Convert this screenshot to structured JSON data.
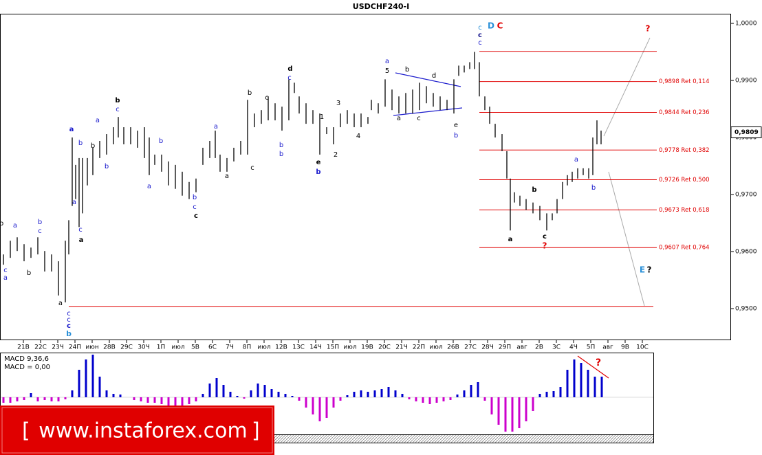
{
  "chart_data": {
    "type": "ohlc",
    "title": "USDCHF240-I",
    "xlim": [
      -1.36,
      36.64
    ],
    "ylim": [
      0.94446,
      1.00169
    ],
    "xticks": [
      {
        "value": 0,
        "label": "21В"
      },
      {
        "value": 1,
        "label": "22С"
      },
      {
        "value": 2,
        "label": "23Ч"
      },
      {
        "value": 3,
        "label": "24П"
      },
      {
        "value": 4,
        "label": "июн"
      },
      {
        "value": 5,
        "label": "28В"
      },
      {
        "value": 6,
        "label": "29С"
      },
      {
        "value": 7,
        "label": "30Ч"
      },
      {
        "value": 8,
        "label": "1П"
      },
      {
        "value": 9,
        "label": "июл"
      },
      {
        "value": 10,
        "label": "5В"
      },
      {
        "value": 11,
        "label": "6С"
      },
      {
        "value": 12,
        "label": "7Ч"
      },
      {
        "value": 13,
        "label": "8П"
      },
      {
        "value": 14,
        "label": "июл"
      },
      {
        "value": 15,
        "label": "12В"
      },
      {
        "value": 16,
        "label": "13С"
      },
      {
        "value": 17,
        "label": "14Ч"
      },
      {
        "value": 18,
        "label": "15П"
      },
      {
        "value": 19,
        "label": "июл"
      },
      {
        "value": 20,
        "label": "19В"
      },
      {
        "value": 21,
        "label": "20С"
      },
      {
        "value": 22,
        "label": "21Ч"
      },
      {
        "value": 23,
        "label": "22П"
      },
      {
        "value": 24,
        "label": "июл"
      },
      {
        "value": 25,
        "label": "26В"
      },
      {
        "value": 26,
        "label": "27С"
      },
      {
        "value": 27,
        "label": "28Ч"
      },
      {
        "value": 28,
        "label": "29П"
      },
      {
        "value": 29,
        "label": "авг"
      },
      {
        "value": 30,
        "label": "2В"
      },
      {
        "value": 31,
        "label": "3С"
      },
      {
        "value": 32,
        "label": "4Ч"
      },
      {
        "value": 33,
        "label": "5П"
      },
      {
        "value": 34,
        "label": "авг"
      },
      {
        "value": 35,
        "label": "9В"
      },
      {
        "value": 36,
        "label": "10С"
      }
    ],
    "yticks": [
      {
        "value": 0.95,
        "label": "0,9500"
      },
      {
        "value": 0.96,
        "label": "0,9600"
      },
      {
        "value": 0.97,
        "label": "0,9700"
      },
      {
        "value": 0.98,
        "label": "0,9800"
      },
      {
        "value": 0.99,
        "label": "0,9900"
      },
      {
        "value": 1.0,
        "label": "1,0000"
      }
    ],
    "color": "#000000",
    "bars": {
      "x": [
        -1.16,
        -0.76,
        -0.36,
        0.04,
        0.44,
        0.84,
        1.24,
        1.64,
        2.04,
        2.44,
        2.64,
        2.84,
        3.04,
        3.24,
        3.44,
        3.72,
        4.04,
        4.44,
        4.84,
        5.24,
        5.52,
        5.84,
        6.24,
        6.64,
        7.04,
        7.32,
        7.64,
        8.04,
        8.44,
        8.84,
        9.24,
        9.64,
        10.04,
        10.44,
        10.84,
        11.16,
        11.44,
        11.84,
        12.24,
        12.64,
        13.04,
        13.44,
        13.84,
        14.24,
        14.64,
        15.04,
        15.44,
        15.76,
        16.04,
        16.44,
        16.84,
        17.24,
        17.64,
        18.04,
        18.44,
        18.84,
        19.24,
        19.64,
        20.04,
        20.24,
        20.64,
        21.04,
        21.44,
        21.84,
        22.24,
        22.64,
        23.04,
        23.44,
        23.84,
        24.24,
        24.64,
        25.04,
        25.32,
        25.64,
        25.96,
        26.24,
        26.52,
        26.84,
        27.12,
        27.44,
        27.84,
        28.12,
        28.32,
        28.56,
        28.88,
        29.24,
        29.64,
        30.04,
        30.44,
        30.76,
        31.04,
        31.36,
        31.64,
        31.92,
        32.24,
        32.56,
        32.88,
        33.12,
        33.36,
        33.6
      ],
      "high": [
        0.9595,
        0.9619,
        0.9625,
        0.9613,
        0.9607,
        0.9625,
        0.9601,
        0.9595,
        0.9583,
        0.9619,
        0.9655,
        0.98,
        0.9752,
        0.9764,
        0.9764,
        0.9764,
        0.9782,
        0.9794,
        0.9806,
        0.9818,
        0.9836,
        0.9818,
        0.9818,
        0.9812,
        0.9818,
        0.98,
        0.977,
        0.977,
        0.9758,
        0.9752,
        0.974,
        0.9722,
        0.9728,
        0.9782,
        0.9794,
        0.9812,
        0.977,
        0.9764,
        0.9782,
        0.9794,
        0.9866,
        0.9842,
        0.9848,
        0.9872,
        0.986,
        0.9854,
        0.9902,
        0.9896,
        0.9872,
        0.986,
        0.9848,
        0.9842,
        0.9818,
        0.9818,
        0.9842,
        0.9848,
        0.9842,
        0.9842,
        0.9836,
        0.9866,
        0.986,
        0.9902,
        0.9884,
        0.9872,
        0.9878,
        0.9884,
        0.9896,
        0.989,
        0.9878,
        0.9872,
        0.9866,
        0.9902,
        0.9926,
        0.9926,
        0.9932,
        0.995,
        0.9932,
        0.9872,
        0.9854,
        0.9824,
        0.9806,
        0.9776,
        0.9728,
        0.9704,
        0.9698,
        0.9692,
        0.9686,
        0.968,
        0.9667,
        0.9667,
        0.9692,
        0.9722,
        0.9734,
        0.974,
        0.9746,
        0.9746,
        0.9746,
        0.98,
        0.983,
        0.9812
      ],
      "low": [
        0.9577,
        0.9589,
        0.9601,
        0.9583,
        0.9589,
        0.9595,
        0.9565,
        0.9565,
        0.9523,
        0.9511,
        0.9595,
        0.968,
        0.9692,
        0.9643,
        0.9667,
        0.9716,
        0.9734,
        0.9764,
        0.977,
        0.9788,
        0.98,
        0.9788,
        0.9788,
        0.9782,
        0.9764,
        0.9734,
        0.9752,
        0.974,
        0.9716,
        0.971,
        0.9698,
        0.9692,
        0.9704,
        0.9752,
        0.9764,
        0.9764,
        0.974,
        0.974,
        0.9758,
        0.977,
        0.977,
        0.9818,
        0.9824,
        0.983,
        0.983,
        0.9812,
        0.983,
        0.9878,
        0.9842,
        0.9824,
        0.9824,
        0.977,
        0.9806,
        0.9788,
        0.9818,
        0.9824,
        0.9818,
        0.9818,
        0.9824,
        0.9848,
        0.9842,
        0.9854,
        0.9848,
        0.9842,
        0.9842,
        0.9842,
        0.9848,
        0.986,
        0.9854,
        0.9848,
        0.9848,
        0.9842,
        0.9908,
        0.9914,
        0.992,
        0.992,
        0.9872,
        0.9848,
        0.9824,
        0.98,
        0.9776,
        0.9728,
        0.9637,
        0.9686,
        0.968,
        0.9673,
        0.9667,
        0.9655,
        0.9637,
        0.9655,
        0.9667,
        0.9692,
        0.9716,
        0.9722,
        0.9728,
        0.9734,
        0.9728,
        0.9734,
        0.9788,
        0.9788
      ]
    },
    "levels": [
      0.9951,
      {
        "value": 0.9898,
        "label": "0,9898 Ret 0,114"
      },
      {
        "value": 0.9844,
        "label": "0,9844 Ret 0,236"
      },
      {
        "value": 0.9778,
        "label": "0,9778 Ret 0,382"
      },
      {
        "value": 0.9726,
        "label": "0,9726 Ret 0,500"
      },
      {
        "value": 0.9673,
        "label": "0,9673 Ret 0,618"
      },
      {
        "value": 0.9607,
        "label": "0,9607 Ret 0,764"
      }
    ],
    "support": 0.9504,
    "level_color": "#e00000",
    "last_price": {
      "value": 0.9809,
      "label": "0,9809"
    },
    "annotations": [
      "D",
      "C",
      "c",
      "c",
      "c",
      "?",
      "E",
      "?",
      "a",
      "b",
      "c",
      "?",
      "a",
      "b",
      "d",
      "c",
      "b",
      "b",
      "e",
      "b",
      "a",
      "b",
      "a",
      "c",
      "a",
      "a",
      "c",
      "c",
      "c",
      "b",
      "b",
      "c",
      "a",
      "b",
      "b",
      "a",
      "b",
      "b",
      "c",
      "c",
      "a",
      "a",
      "c",
      "b",
      "c",
      "1",
      "2",
      "3",
      "4",
      "a",
      "5",
      "b",
      "d",
      "a",
      "c",
      "e",
      "b",
      "a",
      "b",
      "c",
      "c",
      "a",
      "b",
      "?",
      "b"
    ],
    "macd": {
      "title": "MACD 9,36,6",
      "value_label": "MACD = 0,00",
      "ylim": [
        -0.0054,
        0.0063
      ],
      "positive_color": "#0000cc",
      "negative_color": "#cc00cc",
      "x": [
        -1.16,
        -0.76,
        -0.36,
        0.04,
        0.44,
        0.84,
        1.24,
        1.64,
        2.04,
        2.44,
        2.84,
        3.24,
        3.64,
        4.04,
        4.44,
        4.84,
        5.24,
        5.64,
        6.04,
        6.44,
        6.84,
        7.24,
        7.64,
        8.04,
        8.44,
        8.84,
        9.24,
        9.64,
        10.04,
        10.44,
        10.84,
        11.24,
        11.64,
        12.04,
        12.44,
        12.84,
        13.24,
        13.64,
        14.04,
        14.44,
        14.84,
        15.24,
        15.64,
        16.04,
        16.44,
        16.84,
        17.24,
        17.64,
        18.04,
        18.44,
        18.84,
        19.24,
        19.64,
        20.04,
        20.44,
        20.84,
        21.24,
        21.64,
        22.04,
        22.44,
        22.84,
        23.24,
        23.64,
        24.04,
        24.44,
        24.84,
        25.24,
        25.64,
        26.04,
        26.44,
        26.84,
        27.24,
        27.64,
        28.04,
        28.44,
        28.84,
        29.24,
        29.64,
        30.04,
        30.44,
        30.84,
        31.24,
        31.64,
        32.04,
        32.44,
        32.84,
        33.24,
        33.64
      ],
      "values": [
        -0.0008,
        -0.0008,
        -0.0006,
        -0.0004,
        0.0006,
        -0.0006,
        -0.0004,
        -0.0006,
        -0.0006,
        -0.0003,
        0.001,
        0.004,
        0.0055,
        0.0062,
        0.003,
        0.001,
        0.0005,
        0.0004,
        0,
        -0.0004,
        -0.0006,
        -0.0008,
        -0.0008,
        -0.001,
        -0.0012,
        -0.0012,
        -0.0012,
        -0.001,
        -0.0006,
        0.0005,
        0.002,
        0.0028,
        0.0018,
        0.0008,
        0.0002,
        -0.0002,
        0.001,
        0.002,
        0.0018,
        0.0012,
        0.0008,
        0.0005,
        0.0002,
        -0.0005,
        -0.0015,
        -0.0025,
        -0.0035,
        -0.003,
        -0.0015,
        -0.0005,
        0.0003,
        0.0008,
        0.001,
        0.0008,
        0.001,
        0.0012,
        0.0015,
        0.001,
        0.0005,
        -0.0003,
        -0.0006,
        -0.0008,
        -0.001,
        -0.0008,
        -0.0006,
        -0.0004,
        0.0004,
        0.001,
        0.0018,
        0.0022,
        -0.0005,
        -0.0025,
        -0.004,
        -0.005,
        -0.005,
        -0.0045,
        -0.0035,
        -0.002,
        0.0005,
        0.0008,
        0.0009,
        0.0015,
        0.004,
        0.0055,
        0.005,
        0.004,
        0.003,
        0.003
      ]
    },
    "watermark": {
      "left": "[",
      "text": "www.instaforex.com",
      "right": "]"
    }
  }
}
